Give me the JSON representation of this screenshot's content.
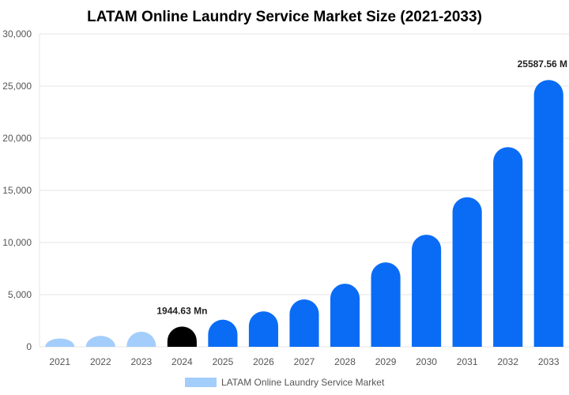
{
  "chart_data": {
    "type": "bar",
    "title": "LATAM Online Laundry Service Market Size (2021-2033)",
    "xlabel": "",
    "ylabel": "",
    "categories": [
      "2021",
      "2022",
      "2023",
      "2024",
      "2025",
      "2026",
      "2027",
      "2028",
      "2029",
      "2030",
      "2031",
      "2032",
      "2033"
    ],
    "series": [
      {
        "name": "LATAM Online Laundry Service Market",
        "values": [
          800,
          1050,
          1450,
          1944.63,
          2600,
          3400,
          4550,
          6050,
          8100,
          10750,
          14350,
          19150,
          25587.56
        ]
      }
    ],
    "ylim": [
      0,
      30000
    ],
    "yticks": [
      0,
      5000,
      10000,
      15000,
      20000,
      25000,
      30000
    ],
    "ytick_labels": [
      "0",
      "5,000",
      "10,000",
      "15,000",
      "20,000",
      "25,000",
      "30,000"
    ],
    "grid": true,
    "legend_position": "bottom",
    "bar_colors": [
      "#a3cdfb",
      "#a3cdfb",
      "#a3cdfb",
      "#000000",
      "#0a6cf5",
      "#0a6cf5",
      "#0a6cf5",
      "#0a6cf5",
      "#0a6cf5",
      "#0a6cf5",
      "#0a6cf5",
      "#0a6cf5",
      "#0a6cf5"
    ],
    "legend_color": "#a3cdfb",
    "annotations": [
      {
        "category": "2024",
        "text": "1944.63 Mn"
      },
      {
        "category": "2033",
        "text": "25587.56 M"
      }
    ]
  }
}
